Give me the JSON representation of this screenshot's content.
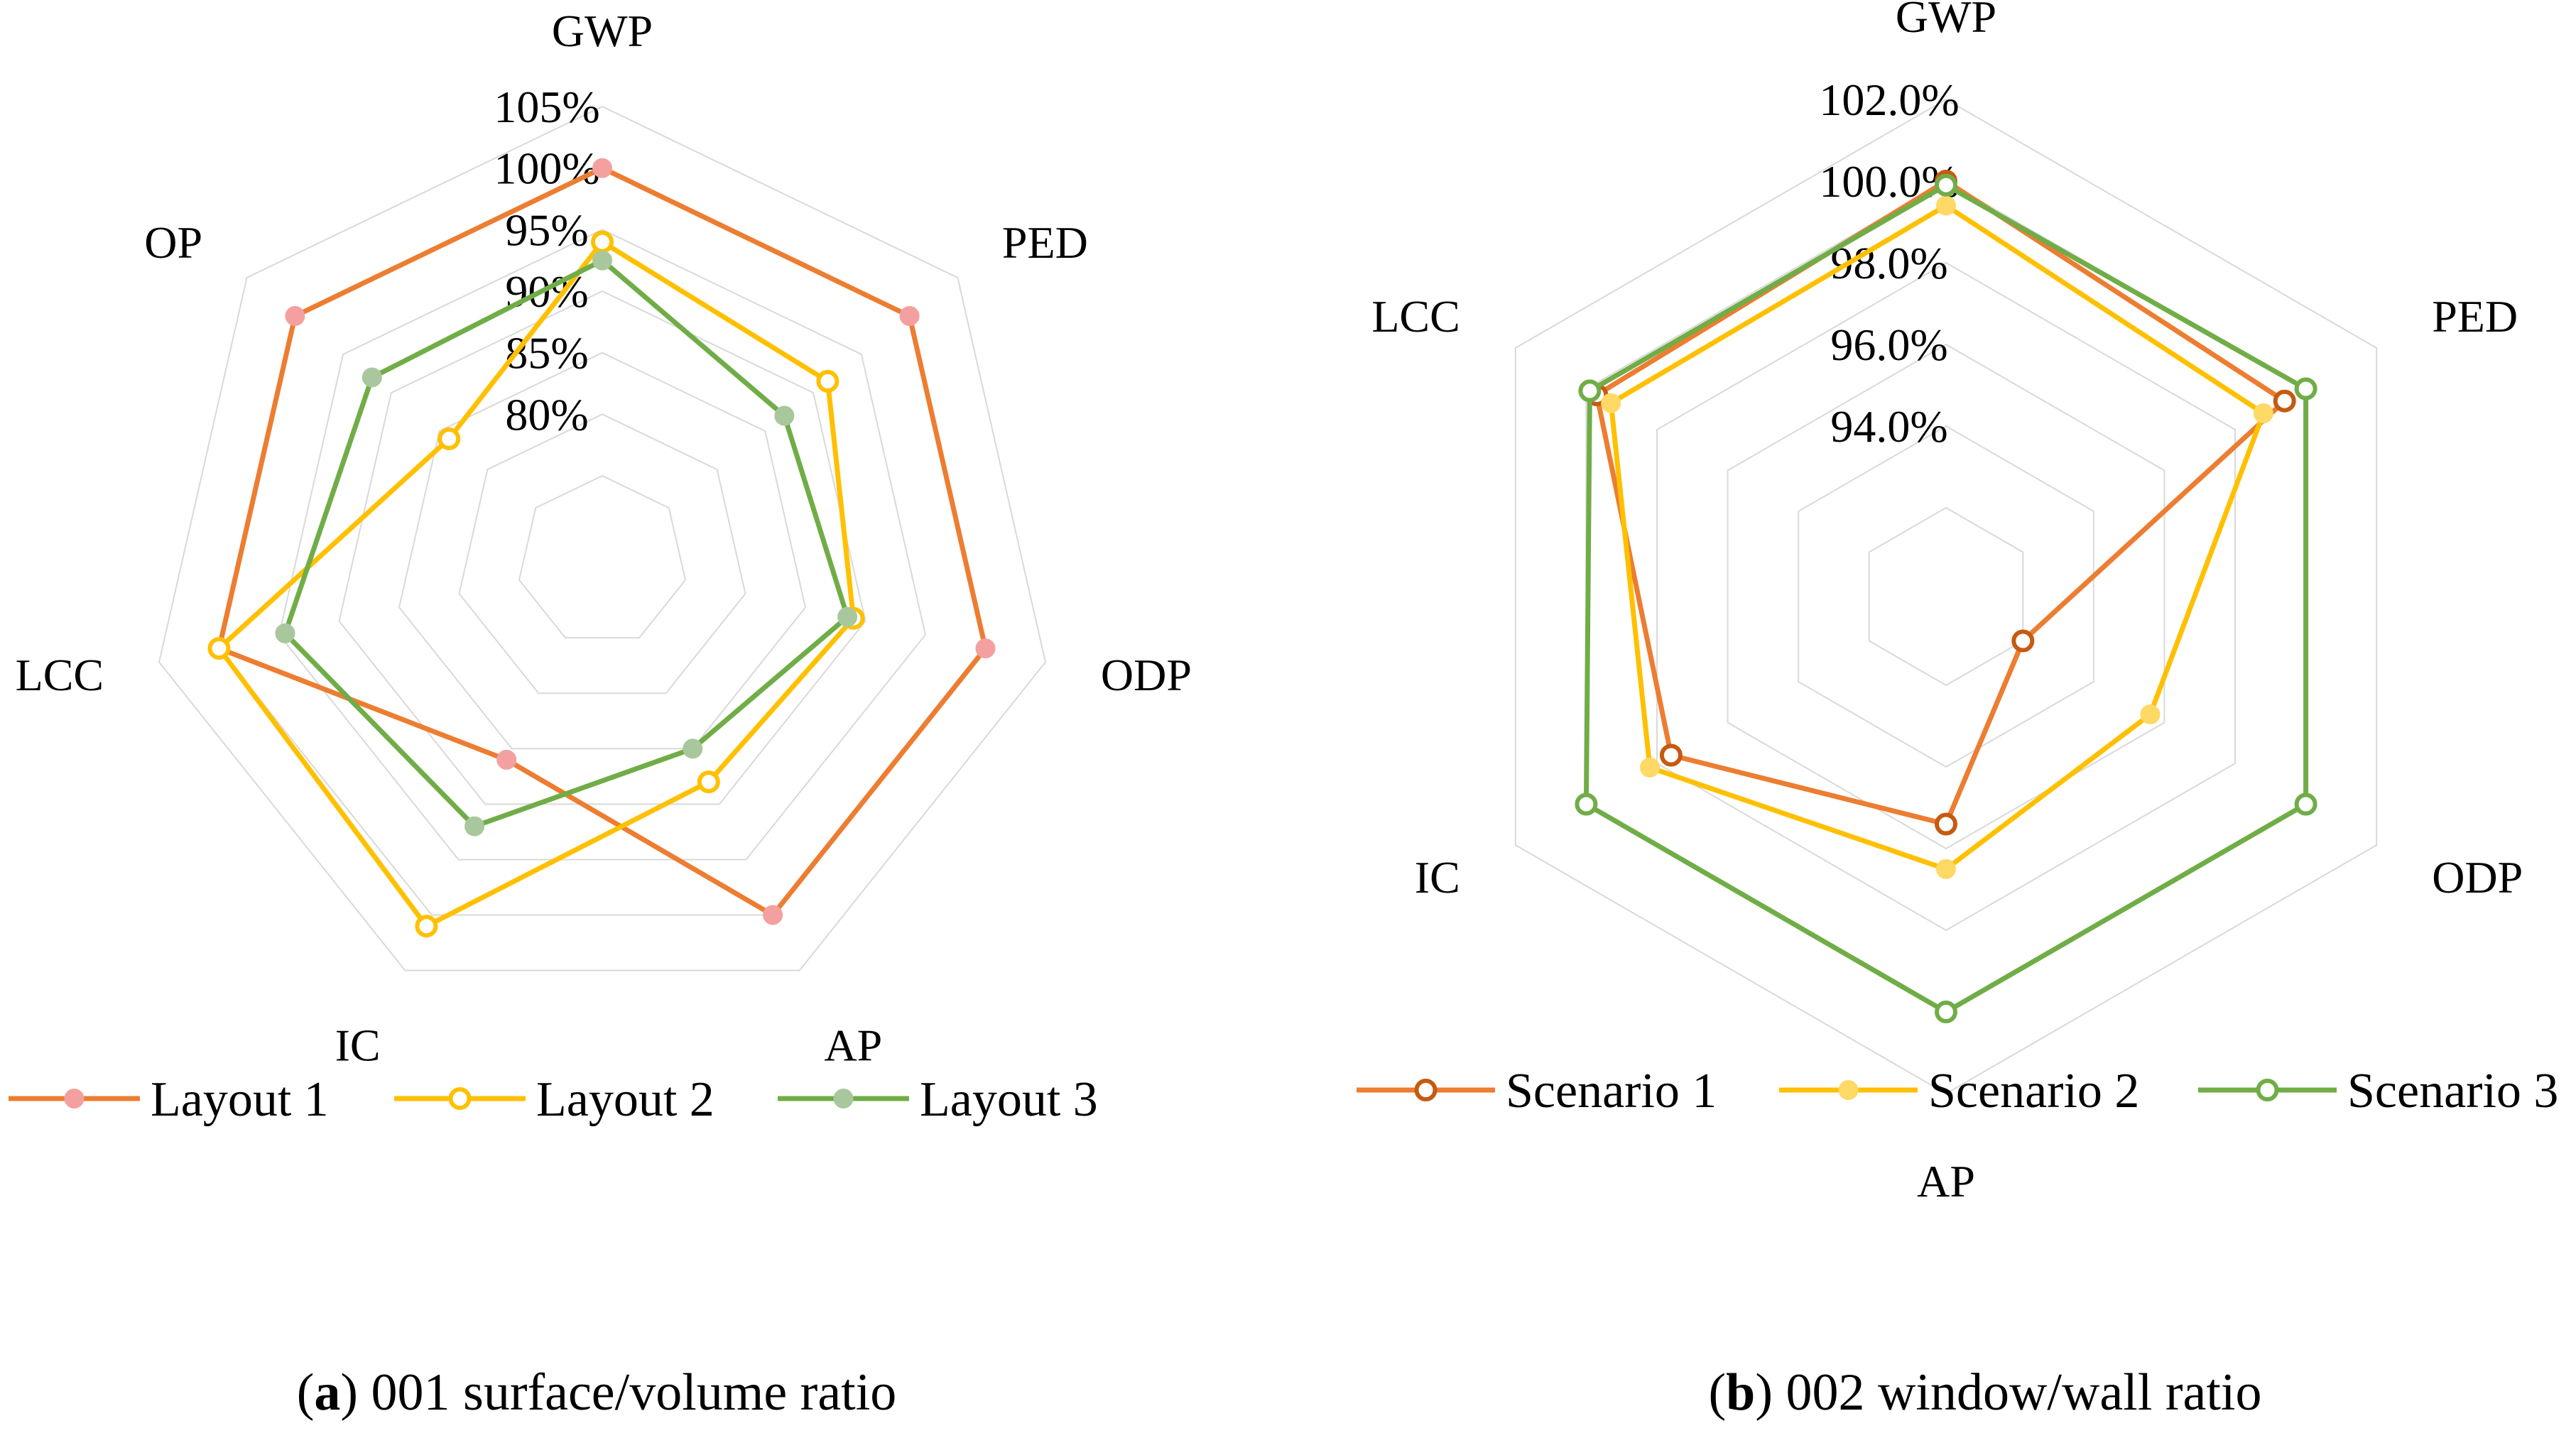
{
  "colors": {
    "layout1": "#ED7D31",
    "layout1_marker": "#F4A0A0",
    "layout2": "#FFC000",
    "layout3": "#70AD47",
    "layout3_marker": "#A9C79C",
    "scenario1": "#ED7D31",
    "scenario1_marker": "#C55A11",
    "scenario2": "#FFC000",
    "scenario2_marker": "#FFD966",
    "scenario3": "#70AD47",
    "scenario3_marker": "#70AD47",
    "grid": "#D9D9D9"
  },
  "chart_data": [
    {
      "type": "radar",
      "caption_letter": "a",
      "caption_text": " 001 surface/volume ratio",
      "axes": [
        "GWP",
        "PED",
        "ODP",
        "AP",
        "IC",
        "LCC",
        "OP"
      ],
      "ticks": [
        "80%",
        "85%",
        "90%",
        "95%",
        "100%",
        "105%"
      ],
      "tick_values": [
        80,
        85,
        90,
        95,
        100,
        105
      ],
      "range": [
        75,
        105
      ],
      "grid": true,
      "legend_position": "bottom",
      "series": [
        {
          "name": "Layout 1",
          "values": [
            100,
            100,
            100,
            100,
            86,
            100,
            100
          ]
        },
        {
          "name": "Layout 2",
          "values": [
            94,
            91.5,
            89,
            88,
            101,
            100,
            84
          ]
        },
        {
          "name": "Layout 3",
          "values": [
            92.5,
            87,
            88.5,
            85,
            92,
            94.5,
            92
          ]
        }
      ]
    },
    {
      "type": "radar",
      "caption_letter": "b",
      "caption_text": " 002 window/wall ratio",
      "axes": [
        "GWP",
        "PED",
        "ODP",
        "AP",
        "IC",
        "LCC"
      ],
      "ticks": [
        "94.0%",
        "96.0%",
        "98.0%",
        "100.0%",
        "102.0%"
      ],
      "tick_values": [
        94,
        96,
        98,
        100,
        102
      ],
      "range": [
        92,
        102
      ],
      "grid": true,
      "legend_position": "bottom",
      "series": [
        {
          "name": "Scenario 1",
          "values": [
            100,
            99.4,
            92,
            95.4,
            97.6,
            99.7
          ]
        },
        {
          "name": "Scenario 2",
          "values": [
            99.4,
            98.8,
            95.6,
            96.5,
            98.2,
            99.3
          ]
        },
        {
          "name": "Scenario 3",
          "values": [
            99.9,
            100,
            100,
            100,
            100,
            99.9
          ]
        }
      ]
    }
  ]
}
